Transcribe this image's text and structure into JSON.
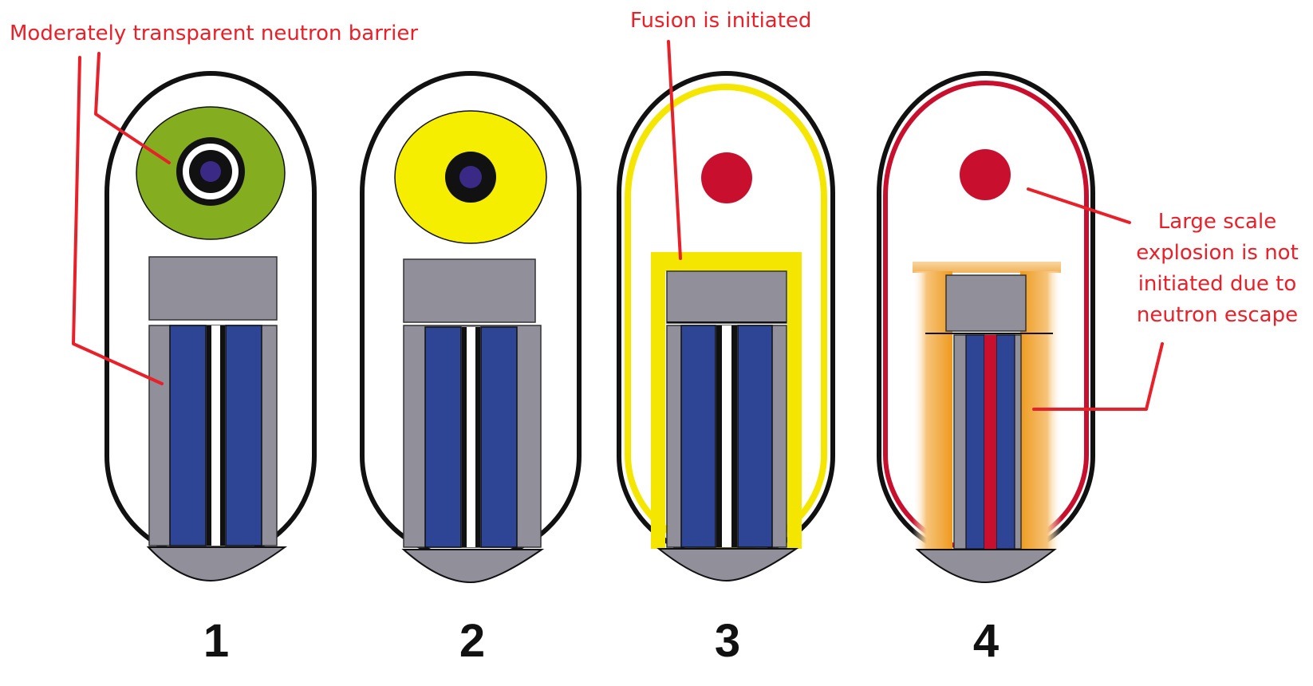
{
  "annotations": {
    "barrier_label": "Moderately transparent neutron barrier",
    "fusion_label": "Fusion is initiated",
    "explosion_label_lines": [
      "Large scale",
      "explosion is not",
      "initiated due to",
      "neutron escape"
    ]
  },
  "stage_numbers": [
    "1",
    "2",
    "3",
    "4"
  ],
  "colors": {
    "annotation": "#e8202a",
    "outline": "#111111",
    "casing_gray": "#918f9a",
    "fuel_blue": "#2e4596",
    "primary_core": "#3a2a86",
    "stage1_primary": "#84ae1f",
    "stage2_primary": "#f5ee00",
    "stage3_flash": "#f5e600",
    "fireball_red": "#c8102e",
    "stage4_shell": "#c8102e",
    "escape_orange": "#ef9a1d"
  }
}
